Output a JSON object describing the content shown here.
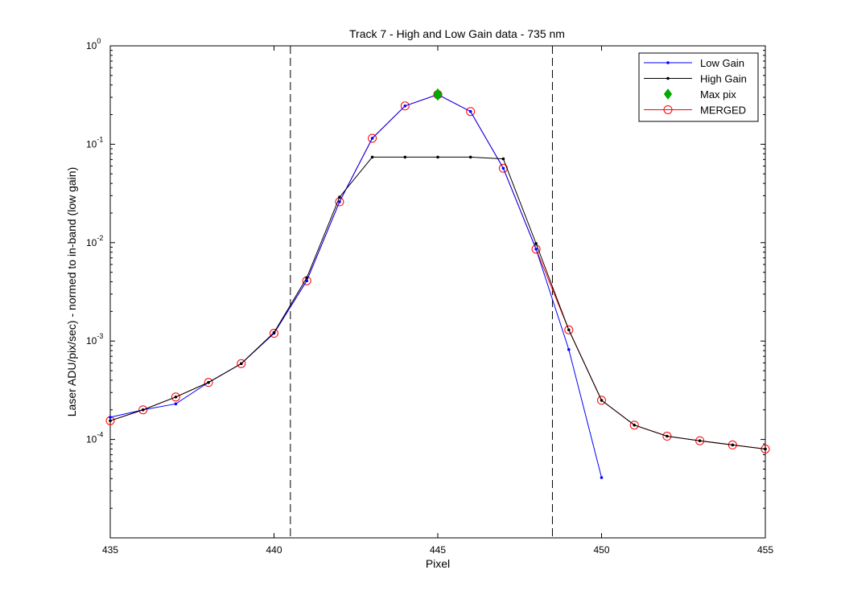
{
  "chart_data": {
    "type": "line",
    "title": "Track 7 - High and Low Gain data - 735 nm",
    "xlabel": "Pixel",
    "ylabel": "Laser ADU/pix/sec) - normed to in-band (low gain)",
    "xlim": [
      435,
      455
    ],
    "ylim": [
      1e-05,
      1
    ],
    "yscale": "log",
    "grid": false,
    "legend_position": "top-right",
    "x_ticks": [
      435,
      440,
      445,
      450,
      455
    ],
    "y_ticks": [
      {
        "value": 1,
        "base": "10",
        "exp": "0"
      },
      {
        "value": 0.1,
        "base": "10",
        "exp": "-1"
      },
      {
        "value": 0.01,
        "base": "10",
        "exp": "-2"
      },
      {
        "value": 0.001,
        "base": "10",
        "exp": "-3"
      },
      {
        "value": 0.0001,
        "base": "10",
        "exp": "-4"
      }
    ],
    "vlines": [
      440.5,
      448.5
    ],
    "series": [
      {
        "name": "Low Gain",
        "color": "#0000ff",
        "marker": "dot",
        "x": [
          435,
          436,
          437,
          438,
          439,
          440,
          441,
          442,
          443,
          444,
          445,
          446,
          447,
          448,
          449,
          450
        ],
        "y": [
          0.000168,
          0.0002,
          0.00023,
          0.00038,
          0.00059,
          0.0012,
          0.0041,
          0.026,
          0.115,
          0.245,
          0.32,
          0.215,
          0.057,
          0.0086,
          0.00082,
          4.1e-05
        ]
      },
      {
        "name": "High Gain",
        "color": "#000000",
        "marker": "dot",
        "x": [
          435,
          436,
          437,
          438,
          439,
          440,
          441,
          442,
          443,
          444,
          445,
          446,
          447,
          448,
          449,
          450,
          451,
          452,
          453,
          454,
          455
        ],
        "y": [
          0.000155,
          0.0002,
          0.00027,
          0.00038,
          0.00059,
          0.00122,
          0.0044,
          0.029,
          0.074,
          0.074,
          0.074,
          0.074,
          0.071,
          0.0098,
          0.0013,
          0.00025,
          0.00014,
          0.000108,
          9.7e-05,
          8.8e-05,
          8e-05
        ]
      },
      {
        "name": "Max pix",
        "color": "#00aa00",
        "marker": "diamond",
        "x": [
          445
        ],
        "y": [
          0.32
        ]
      },
      {
        "name": "MERGED",
        "color": "#ff0000",
        "marker": "circle",
        "x": [
          435,
          436,
          437,
          438,
          439,
          440,
          441,
          442,
          443,
          444,
          445,
          446,
          447,
          448,
          449,
          450,
          451,
          452,
          453,
          454,
          455
        ],
        "y": [
          0.000155,
          0.0002,
          0.00027,
          0.00038,
          0.00059,
          0.0012,
          0.0041,
          0.026,
          0.115,
          0.245,
          0.32,
          0.215,
          0.057,
          0.0086,
          0.0013,
          0.00025,
          0.00014,
          0.000108,
          9.7e-05,
          8.8e-05,
          8e-05
        ]
      }
    ]
  }
}
